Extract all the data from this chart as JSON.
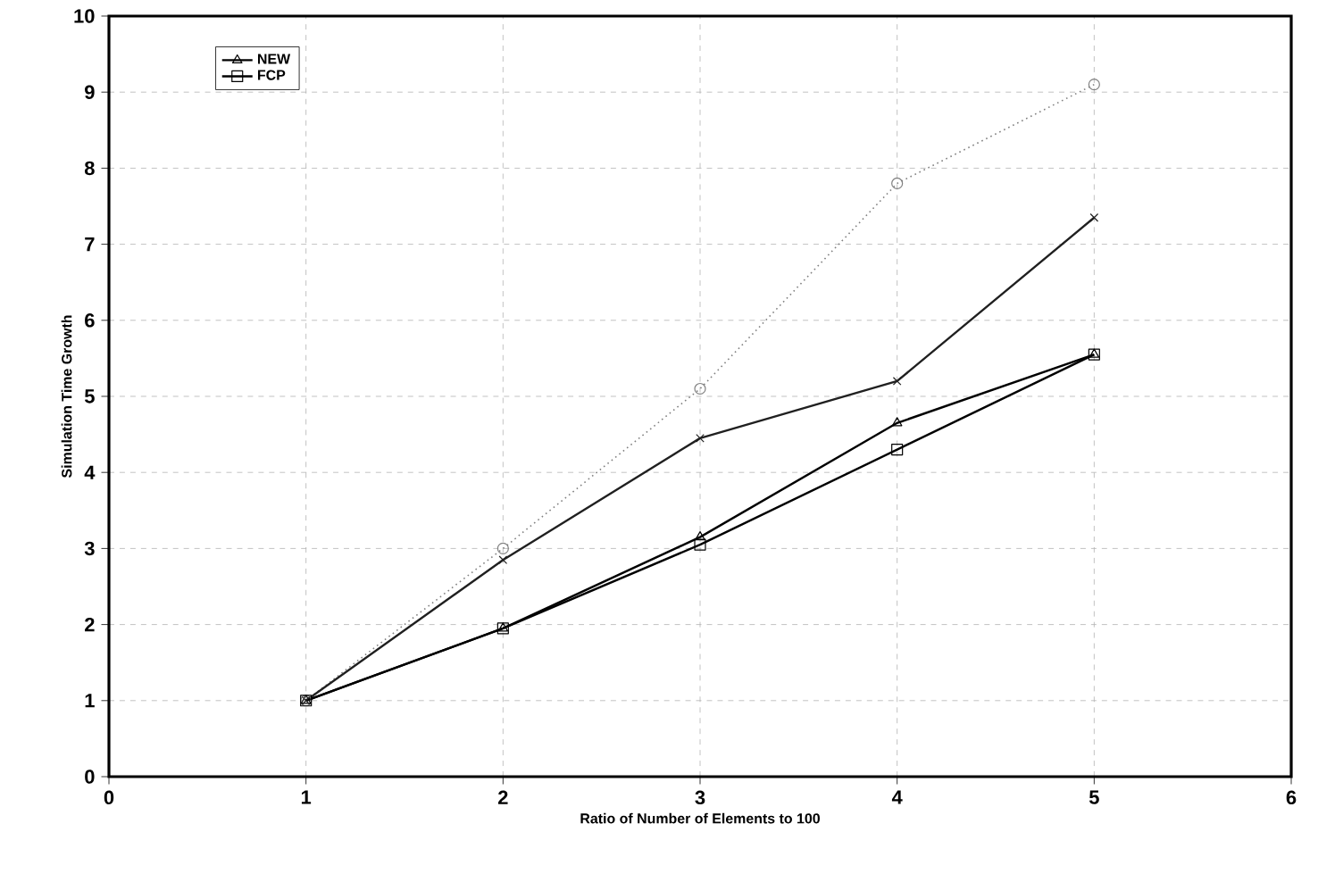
{
  "chart_data": {
    "type": "line",
    "xlabel": "Ratio of Number of Elements to 100",
    "ylabel": "Simulation Time Growth",
    "x": [
      1,
      2,
      3,
      4,
      5
    ],
    "series": [
      {
        "color": "#808080",
        "marker": "circle",
        "line_style": "dotted",
        "values": [
          1,
          3.0,
          5.1,
          7.8,
          9.1
        ]
      },
      {
        "name": "NEW",
        "color": "#000000",
        "marker": "triangle",
        "line_style": "solid",
        "values": [
          1,
          1.95,
          3.15,
          4.65,
          5.55
        ]
      },
      {
        "color": "#202020",
        "marker": "cross",
        "line_style": "solid",
        "values": [
          1,
          2.85,
          4.45,
          5.2,
          7.35
        ]
      },
      {
        "name": "FCP",
        "color": "#000000",
        "marker": "square",
        "line_style": "solid",
        "values": [
          1,
          1.95,
          3.05,
          4.3,
          5.55
        ]
      }
    ],
    "xlim": [
      0,
      6
    ],
    "ylim": [
      0,
      10
    ],
    "xticks": [
      0,
      1,
      2,
      3,
      4,
      5,
      6
    ],
    "yticks": [
      0,
      1,
      2,
      3,
      4,
      5,
      6,
      7,
      8,
      9,
      10
    ],
    "grid": true,
    "legend": "top left"
  }
}
